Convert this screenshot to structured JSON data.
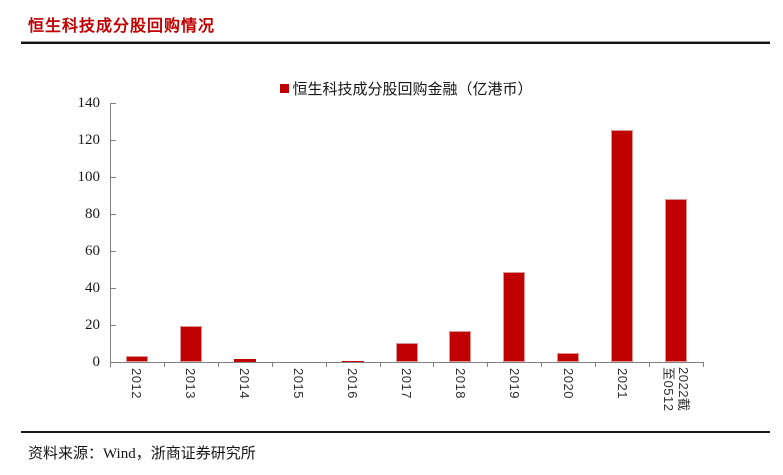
{
  "page": {
    "title": "恒生科技成分股回购情况",
    "source": "资料来源：Wind，浙商证券研究所"
  },
  "chart_data": {
    "type": "bar",
    "legend": [
      "恒生科技成分股回购金融（亿港币）"
    ],
    "categories": [
      "2012",
      "2013",
      "2014",
      "2015",
      "2016",
      "2017",
      "2018",
      "2019",
      "2020",
      "2021",
      "2022截至0512"
    ],
    "category_display_lines": [
      [
        "2012"
      ],
      [
        "2013"
      ],
      [
        "2014"
      ],
      [
        "2015"
      ],
      [
        "2016"
      ],
      [
        "2017"
      ],
      [
        "2018"
      ],
      [
        "2019"
      ],
      [
        "2020"
      ],
      [
        "2021"
      ],
      [
        "2022截",
        "至0512"
      ]
    ],
    "values": [
      3.5,
      19.5,
      1.5,
      0,
      0.3,
      10.5,
      16.5,
      48.5,
      5,
      125.5,
      88
    ],
    "ylim": [
      0,
      140
    ],
    "yticks": [
      0,
      20,
      40,
      60,
      80,
      100,
      120,
      140
    ],
    "bar_color": "#c00000",
    "title_color": "#c00000",
    "legend_position": "top-center",
    "grid": false,
    "xlabel_rotation_deg": 90
  }
}
